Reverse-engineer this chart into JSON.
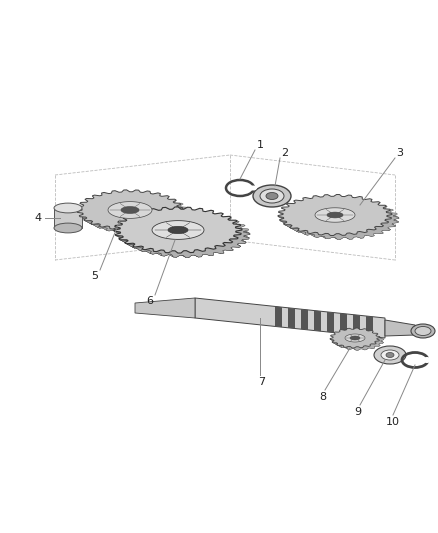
{
  "bg_color": "#ffffff",
  "fig_width": 4.38,
  "fig_height": 5.33,
  "dpi": 100,
  "line_color": "#888888",
  "dark_color": "#222222",
  "label_color": "#333333",
  "gear_face": "#c8c8c8",
  "gear_inner": "#e0e0e0",
  "gear_hub": "#555555",
  "gear_edge": "#444444",
  "shaft_light": "#d8d8d8",
  "shaft_dark": "#333333"
}
